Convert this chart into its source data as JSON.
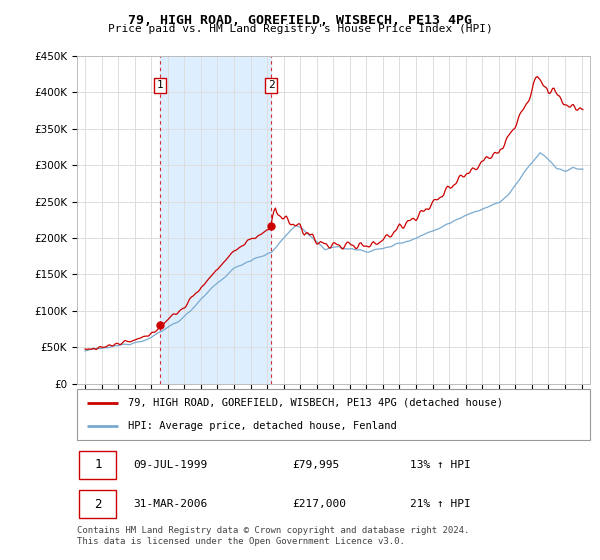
{
  "title": "79, HIGH ROAD, GOREFIELD, WISBECH, PE13 4PG",
  "subtitle": "Price paid vs. HM Land Registry's House Price Index (HPI)",
  "legend_line1": "79, HIGH ROAD, GOREFIELD, WISBECH, PE13 4PG (detached house)",
  "legend_line2": "HPI: Average price, detached house, Fenland",
  "footer": "Contains HM Land Registry data © Crown copyright and database right 2024.\nThis data is licensed under the Open Government Licence v3.0.",
  "sale1_date": "09-JUL-1999",
  "sale1_price": "£79,995",
  "sale1_hpi": "13% ↑ HPI",
  "sale1_year": 1999.53,
  "sale1_value": 79995,
  "sale2_date": "31-MAR-2006",
  "sale2_price": "£217,000",
  "sale2_hpi": "21% ↑ HPI",
  "sale2_year": 2006.25,
  "sale2_value": 217000,
  "red_color": "#cc0000",
  "blue_color": "#7aaad0",
  "shade_color": "#ddeeff",
  "marker_color": "#cc0000",
  "grid_color": "#dddddd",
  "background_color": "#ffffff",
  "ylim": [
    0,
    450000
  ],
  "xlim_start": 1994.5,
  "xlim_end": 2025.5
}
